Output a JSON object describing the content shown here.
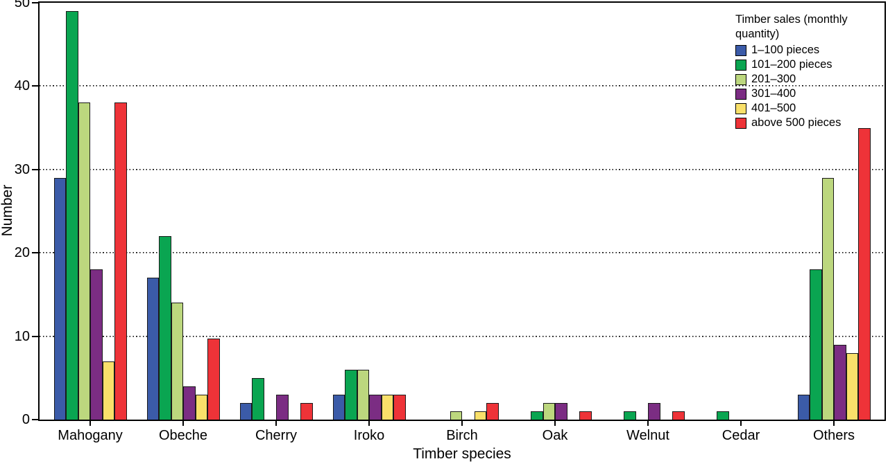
{
  "chart_data": {
    "type": "bar",
    "title": "",
    "xlabel": "Timber species",
    "ylabel": "Number",
    "ylim": [
      0,
      50
    ],
    "yticks": [
      0,
      10,
      20,
      30,
      40,
      50
    ],
    "gridlines_at": [
      10,
      20,
      30,
      40
    ],
    "grid_style": "dotted-horizontal",
    "legend_position": "top-right",
    "legend_title": "Timber sales (monthly quantity)",
    "categories": [
      "Mahogany",
      "Obeche",
      "Cherry",
      "Iroko",
      "Birch",
      "Oak",
      "Welnut",
      "Cedar",
      "Others"
    ],
    "series": [
      {
        "name": "1–100 pieces",
        "color": "#3b5ba8",
        "values": [
          29,
          17,
          2,
          3,
          0,
          0,
          0,
          0,
          3
        ]
      },
      {
        "name": "101–200 pieces",
        "color": "#0aa551",
        "values": [
          49,
          22,
          5,
          6,
          0,
          1,
          1,
          1,
          18
        ]
      },
      {
        "name": "201–300",
        "color": "#bcd77e",
        "values": [
          38,
          14,
          0,
          6,
          1,
          2,
          0,
          0,
          29
        ]
      },
      {
        "name": "301–400",
        "color": "#7b2d83",
        "values": [
          18,
          4,
          3,
          3,
          0,
          2,
          2,
          0,
          9
        ]
      },
      {
        "name": "401–500",
        "color": "#f9e06a",
        "values": [
          7,
          3,
          0,
          3,
          1,
          0,
          0,
          0,
          8
        ]
      },
      {
        "name": "above 500 pieces",
        "color": "#ee3338",
        "values": [
          38,
          9.7,
          2,
          3,
          2,
          1,
          1,
          0,
          35
        ]
      }
    ],
    "bar_outline_color": "#1a1a1a",
    "axis_color": "#000000",
    "background_color": "#ffffff"
  }
}
